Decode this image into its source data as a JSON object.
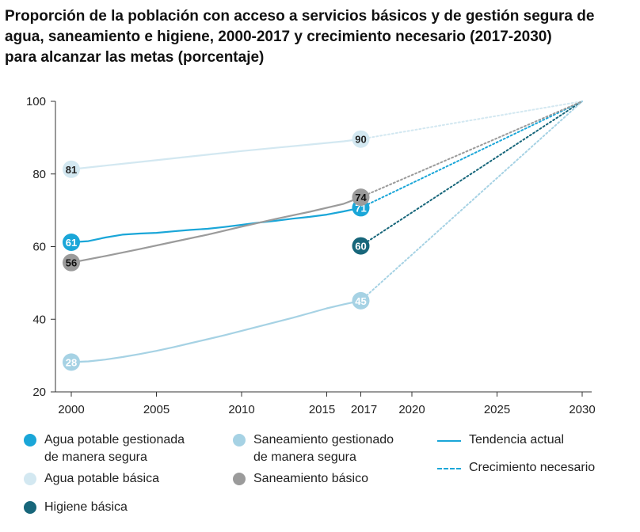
{
  "title": {
    "line1": "Proporción de la población con acceso a servicios básicos y de gestión segura de",
    "line2": "agua, saneamiento e higiene, 2000-2017 y crecimiento necesario (2017-2030)",
    "line3": "para alcanzar las metas (porcentaje)"
  },
  "chart_data": {
    "type": "line",
    "xlim": [
      2000,
      2030
    ],
    "ylim": [
      20,
      100
    ],
    "x_ticks": [
      "2000",
      "2005",
      "2010",
      "2015",
      "2017",
      "2020",
      "2025",
      "2030"
    ],
    "y_ticks": [
      "20",
      "40",
      "60",
      "80",
      "100"
    ],
    "grid": false,
    "legend_position": "bottom",
    "series": [
      {
        "name": "Agua potable gestionada de manera segura",
        "color": "#1aa6d8",
        "start_label": "61",
        "end_label": "71",
        "trend": [
          [
            2000,
            61.2
          ],
          [
            2001,
            61.5
          ],
          [
            2002,
            62.5
          ],
          [
            2003,
            63.3
          ],
          [
            2004,
            63.6
          ],
          [
            2005,
            63.8
          ],
          [
            2006,
            64.2
          ],
          [
            2007,
            64.6
          ],
          [
            2008,
            64.9
          ],
          [
            2009,
            65.4
          ],
          [
            2010,
            66.0
          ],
          [
            2011,
            66.6
          ],
          [
            2012,
            67.1
          ],
          [
            2013,
            67.7
          ],
          [
            2014,
            68.2
          ],
          [
            2015,
            68.8
          ],
          [
            2016,
            69.7
          ],
          [
            2017,
            70.7
          ]
        ],
        "needed": [
          [
            2017,
            70.7
          ],
          [
            2030,
            100
          ]
        ]
      },
      {
        "name": "Agua potable básica",
        "color": "#d3e8f1",
        "start_label": "81",
        "end_label": "90",
        "trend": [
          [
            2000,
            81.3
          ],
          [
            2002,
            82.3
          ],
          [
            2004,
            83.3
          ],
          [
            2006,
            84.3
          ],
          [
            2008,
            85.3
          ],
          [
            2010,
            86.3
          ],
          [
            2012,
            87.2
          ],
          [
            2014,
            88.1
          ],
          [
            2016,
            89.0
          ],
          [
            2017,
            89.6
          ]
        ],
        "needed": [
          [
            2017,
            89.6
          ],
          [
            2030,
            100
          ]
        ]
      },
      {
        "name": "Higiene básica",
        "color": "#17667a",
        "start_label": null,
        "end_label": "60",
        "trend": [],
        "needed": [
          [
            2017,
            60.2
          ],
          [
            2030,
            100
          ]
        ]
      },
      {
        "name": "Saneamiento gestionado de manera segura",
        "color": "#a6d2e4",
        "start_label": "28",
        "end_label": "45",
        "trend": [
          [
            2000,
            28.2
          ],
          [
            2001,
            28.4
          ],
          [
            2002,
            28.9
          ],
          [
            2003,
            29.6
          ],
          [
            2004,
            30.4
          ],
          [
            2005,
            31.3
          ],
          [
            2006,
            32.3
          ],
          [
            2007,
            33.4
          ],
          [
            2008,
            34.5
          ],
          [
            2009,
            35.6
          ],
          [
            2010,
            36.8
          ],
          [
            2011,
            38.0
          ],
          [
            2012,
            39.2
          ],
          [
            2013,
            40.4
          ],
          [
            2014,
            41.7
          ],
          [
            2015,
            43.0
          ],
          [
            2016,
            44.1
          ],
          [
            2017,
            45.1
          ]
        ],
        "needed": [
          [
            2017,
            45.1
          ],
          [
            2030,
            100
          ]
        ]
      },
      {
        "name": "Saneamiento básico",
        "color": "#9b9b9b",
        "start_label": "56",
        "end_label": "74",
        "trend": [
          [
            2000,
            55.6
          ],
          [
            2002,
            57.4
          ],
          [
            2004,
            59.3
          ],
          [
            2006,
            61.3
          ],
          [
            2008,
            63.3
          ],
          [
            2010,
            65.5
          ],
          [
            2012,
            67.6
          ],
          [
            2014,
            69.6
          ],
          [
            2016,
            71.8
          ],
          [
            2017,
            73.6
          ]
        ],
        "needed": [
          [
            2017,
            73.6
          ],
          [
            2030,
            100
          ]
        ]
      }
    ]
  },
  "legend": {
    "safe_water_1": "Agua potable gestionada",
    "safe_water_2": "de manera segura",
    "basic_water": "Agua potable básica",
    "hygiene": "Higiene básica",
    "safe_sanit_1": "Saneamiento gestionado",
    "safe_sanit_2": "de manera segura",
    "basic_sanit": "Saneamiento básico",
    "trend": "Tendencia actual",
    "needed": "Crecimiento necesario",
    "colors": {
      "safe_water": "#1aa6d8",
      "basic_water": "#d3e8f1",
      "hygiene": "#17667a",
      "safe_sanit": "#a6d2e4",
      "basic_sanit": "#9b9b9b",
      "trend_line": "#1aa6d8"
    }
  }
}
